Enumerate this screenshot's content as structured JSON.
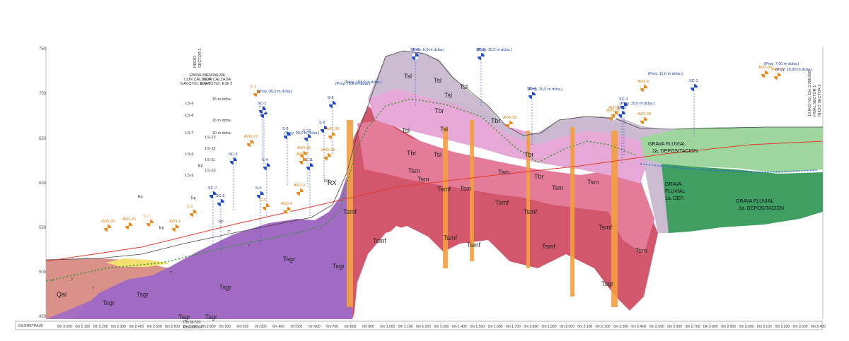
{
  "profile": {
    "axis_label": "KILOMETRAJE",
    "elevation_ticks": [
      "750",
      "700",
      "650",
      "600",
      "550",
      "500",
      "450"
    ],
    "chainage_ticks": [
      "0m 2.000",
      "0m 2.100",
      "0m 2.200",
      "0m 2.300",
      "0m 2.400",
      "0m 2.500",
      "0m 2.600",
      "0m 2.700",
      "0m 2.800",
      "0m 100",
      "0m 200",
      "0m 300",
      "0m 400",
      "0m 500",
      "0m 600",
      "0m 700",
      "0m 800",
      "0m 900",
      "0m 1.000",
      "0m 1.100",
      "0m 1.200",
      "0m 1.300",
      "0m 1.400",
      "0m 1.500",
      "0m 1.600",
      "0m 1.700",
      "0m 1.800",
      "0m 1.900",
      "0m 2.000",
      "0m 2.100",
      "0m 2.200",
      "0m 2.300",
      "0m 2.400",
      "0m 2.500",
      "0m 2.600",
      "0m 2.700",
      "0m 2.800",
      "0m 2.900",
      "0m 3.000",
      "0m 3.100",
      "0m 3.200",
      "0m 3.300",
      "0m 3.400"
    ],
    "chainage_split": [
      "Dm 34.530",
      "Dm 268.000"
    ],
    "sector_start_left": [
      "INICIO",
      "SECTOR 1"
    ],
    "sector_end_right": [
      "10 AVO NS. Dm 3.368.000",
      "FINAL SECTOR 1",
      "INICIO SECTOR 2"
    ],
    "empalme_1": [
      "EMPALME",
      "CON CALZADA",
      "9 AVO NS. EJE 1"
    ],
    "empalme_2": [
      "EMPALME",
      "CON CALZADA",
      "10 AVO NS. EJE 2"
    ],
    "fluvial_2a": [
      "GRAVA FLUVIAL",
      "2a. DEPOSITACIÓN"
    ],
    "fluvial_1a": [
      "GRAVA",
      "FLUVIAL",
      "1a. DEP."
    ],
    "fluvial_1a_b": [
      "GRAVA FLUVIAL",
      "1a. DEPOSITACIÓN"
    ],
    "units": [
      "Tsl",
      "Tsl",
      "Tsl",
      "Tsl",
      "Tsl",
      "Tsl",
      "Tsl",
      "Tbr",
      "Tbr",
      "Tbr",
      "Tbr",
      "Tbr",
      "Tsm",
      "Tsm",
      "Tsm",
      "Tsm",
      "Tsm",
      "Tsm",
      "Tsm",
      "Tsmf",
      "Tsmf",
      "Tsmf",
      "Tsmf",
      "Tsmf",
      "Tsmf",
      "Tsmf",
      "Tsmf",
      "Tsmf",
      "Tsgr",
      "Tsgr",
      "Tsgr",
      "Tsgr",
      "Qal",
      "Tsgr",
      "Tsgr",
      "Tsgr",
      "RX",
      "Tsgr"
    ],
    "boreholes_blue": [
      "SC-8",
      "SC-5",
      "SC-4",
      "SC-3",
      "SC-2",
      "SC-1",
      "SC-6",
      "SC-7",
      "S-8",
      "S-9",
      "S-10",
      "S-11",
      "S-2",
      "S-3",
      "S-4",
      "S-5",
      "SC-1",
      "SC-3"
    ],
    "pits_orange": [
      "AVO-25",
      "AVO-26",
      "C-7",
      "AVO-1",
      "C-2",
      "C-1",
      "C-3",
      "AVO-27",
      "AVO-28",
      "AVO-29",
      "AVO-30",
      "AVO-31",
      "AVO-32",
      "AVO-33",
      "AVO-6",
      "AVO-7",
      "AVO-5",
      "AVO-36",
      "AVO-37",
      "AVO-3",
      "AVO-4"
    ],
    "depth_notes": [
      "(Proy. 6,0 m dcha.)",
      "(Proy. 10,0 m dcha.)",
      "(Proy. 20,0 m dcha.)",
      "(Proy. 15,0 m dcha.)",
      "(Proy. 75,0 m dcha.)",
      "(Proy. 183,0 m dcha.)",
      "(Proy. 95,0 m dcha.)",
      "(Proy. 30,0 m dcha.)",
      "(Proy. 11,0 m dcha.)",
      "(Proy. 7,00 m dcha.)",
      "(Proy. 15,00 m dcha.)"
    ],
    "well_labels": [
      "LS-9",
      "LS-8",
      "LS-7",
      "LS-6",
      "LS-5",
      "LS-13",
      "LS-12",
      "LS-11",
      "LS-10",
      "15 m dcha.",
      "15 m dcha.",
      "10 m dcha."
    ],
    "misc_labels": [
      "?",
      "?",
      "?",
      "?",
      "?",
      "?",
      "Ep",
      "Ep",
      "Ep",
      "Ep",
      "Ep",
      "RX"
    ],
    "colors": {
      "Tsl": "#c8b8d0",
      "Tbr": "#e6a8d6",
      "Tsm": "#e47b98",
      "Tsmf": "#d3576c",
      "Tsgr": "#a16bc4",
      "Qal": "#d9918a",
      "grava_2a": "#9fd6a0",
      "grava_1a": "#3f9e62",
      "dikes": "#f5a040",
      "blue_marker": "#1f4cd0",
      "orange_marker": "#ef8a1a",
      "road_line": "#e23a2a",
      "water_table": "#2c63d8",
      "contact_line": "#2a9a28"
    }
  }
}
